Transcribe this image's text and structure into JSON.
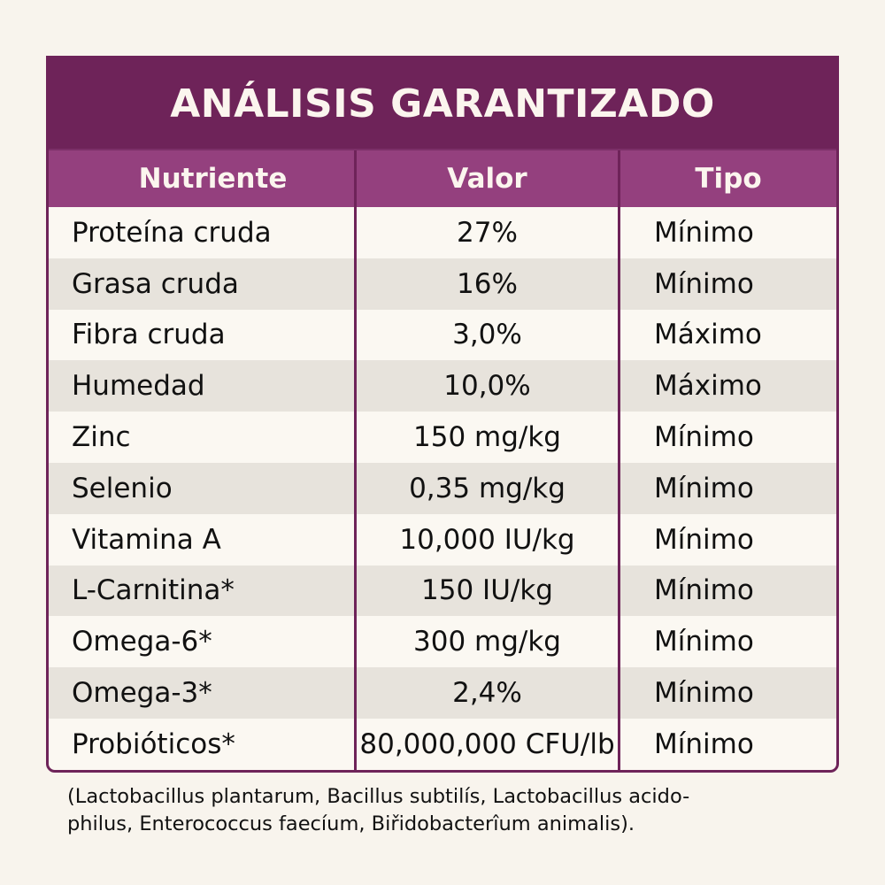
{
  "title": "ANÁLISIS GARANTIZADO",
  "headers": [
    "Nutriente",
    "Valor",
    "Tipo"
  ],
  "rows": [
    {
      "nutrient": "Proteína cruda",
      "value": "27%",
      "type": "Mínimo"
    },
    {
      "nutrient": "Grasa cruda",
      "value": "16%",
      "type": "Mínimo"
    },
    {
      "nutrient": "Fibra cruda",
      "value": "3,0%",
      "type": "Máximo"
    },
    {
      "nutrient": "Humedad",
      "value": "10,0%",
      "type": "Máximo"
    },
    {
      "nutrient": "Zinc",
      "value": "150 mg/kg",
      "type": "Mínimo"
    },
    {
      "nutrient": "Selenio",
      "value": "0,35 mg/kg",
      "type": "Mínimo"
    },
    {
      "nutrient": "Vitamina A",
      "value": "10,000 IU/kg",
      "type": "Mínimo"
    },
    {
      "nutrient": "L-Carnitina*",
      "value": "150 IU/kg",
      "type": "Mínimo"
    },
    {
      "nutrient": "Omega-6*",
      "value": "300 mg/kg",
      "type": "Mínimo"
    },
    {
      "nutrient": "Omega-3*",
      "value": "2,4%",
      "type": "Mínimo"
    },
    {
      "nutrient": "Probióticos*",
      "value": "80,000,000 CFU/lb",
      "type": "Mínimo"
    }
  ],
  "footnote": {
    "line1": "(Lactobacillus plantarum, Bacillus subtilís, Lactobacillus acido-",
    "line2": "philus, Enterococcus faecíum, Biřidobacterîum animalis)."
  },
  "colors": {
    "title_bg": "#6e2359",
    "header_bg": "#94407e",
    "row_alt": "#e7e3dc",
    "row": "#fbf8f2"
  }
}
